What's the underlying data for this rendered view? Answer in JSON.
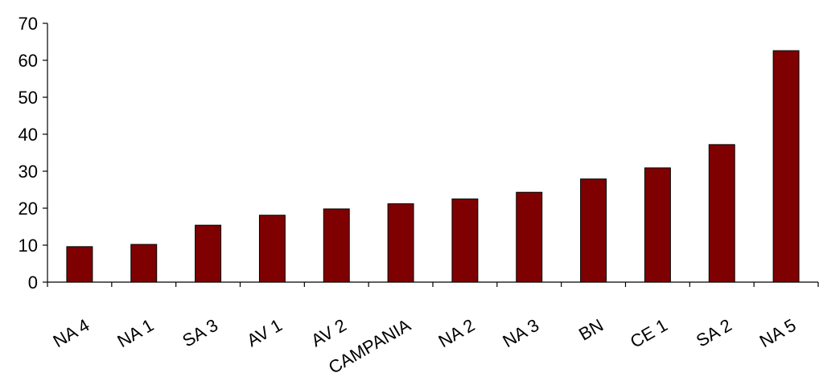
{
  "chart_data": {
    "type": "bar",
    "categories": [
      "NA 4",
      "NA 1",
      "SA 3",
      "AV 1",
      "AV 2",
      "CAMPANIA",
      "NA 2",
      "NA 3",
      "BN",
      "CE 1",
      "SA 2",
      "NA 5"
    ],
    "values": [
      9.6,
      10.2,
      15.4,
      18.1,
      19.8,
      21.2,
      22.5,
      24.3,
      27.9,
      30.9,
      37.2,
      62.6
    ],
    "ylim": [
      0,
      70
    ],
    "yticks": [
      0,
      10,
      20,
      30,
      40,
      50,
      60,
      70
    ],
    "ytick_labels": [
      "0",
      "10",
      "20",
      "30",
      "40",
      "50",
      "60",
      "70"
    ],
    "grid": false,
    "legend": "none",
    "bar_color": "#7f0000",
    "title": "",
    "xlabel": "",
    "ylabel": ""
  }
}
